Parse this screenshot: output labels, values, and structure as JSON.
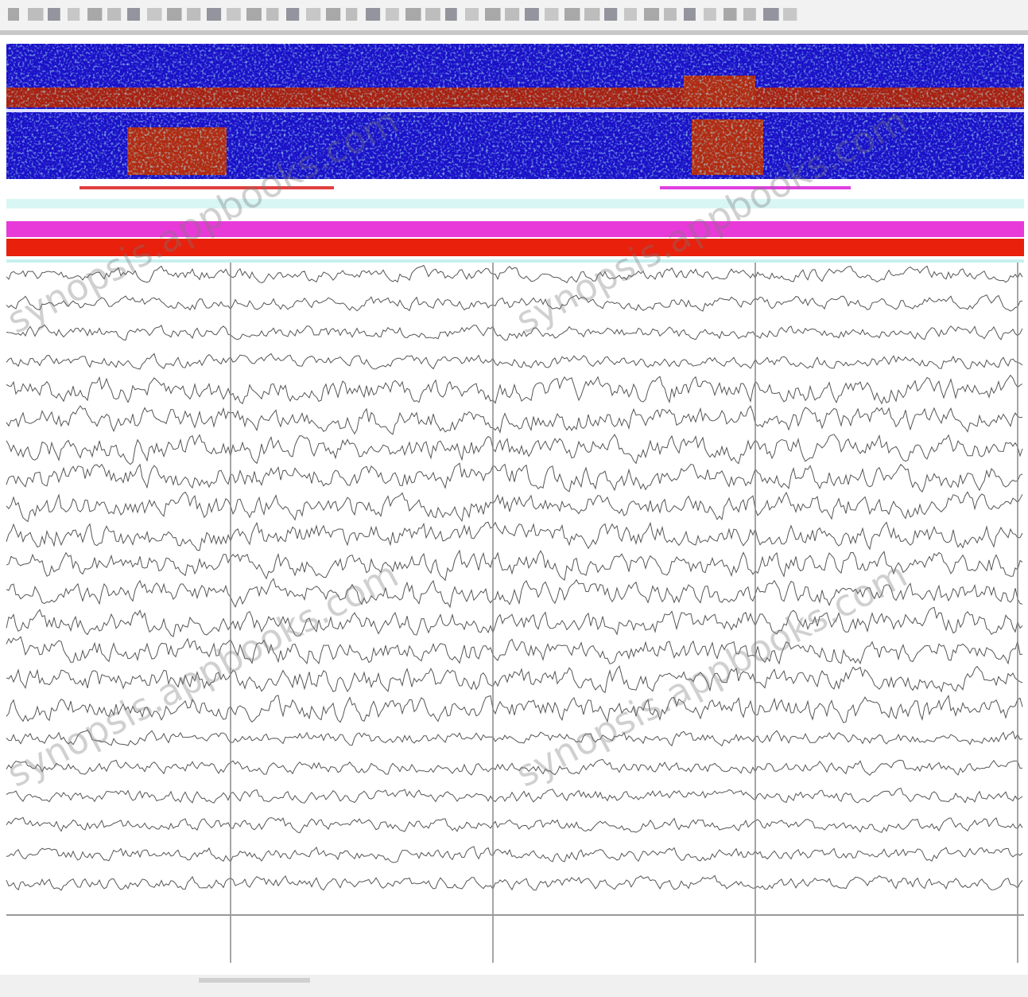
{
  "watermark": "synopsis.appbooks.com"
}
